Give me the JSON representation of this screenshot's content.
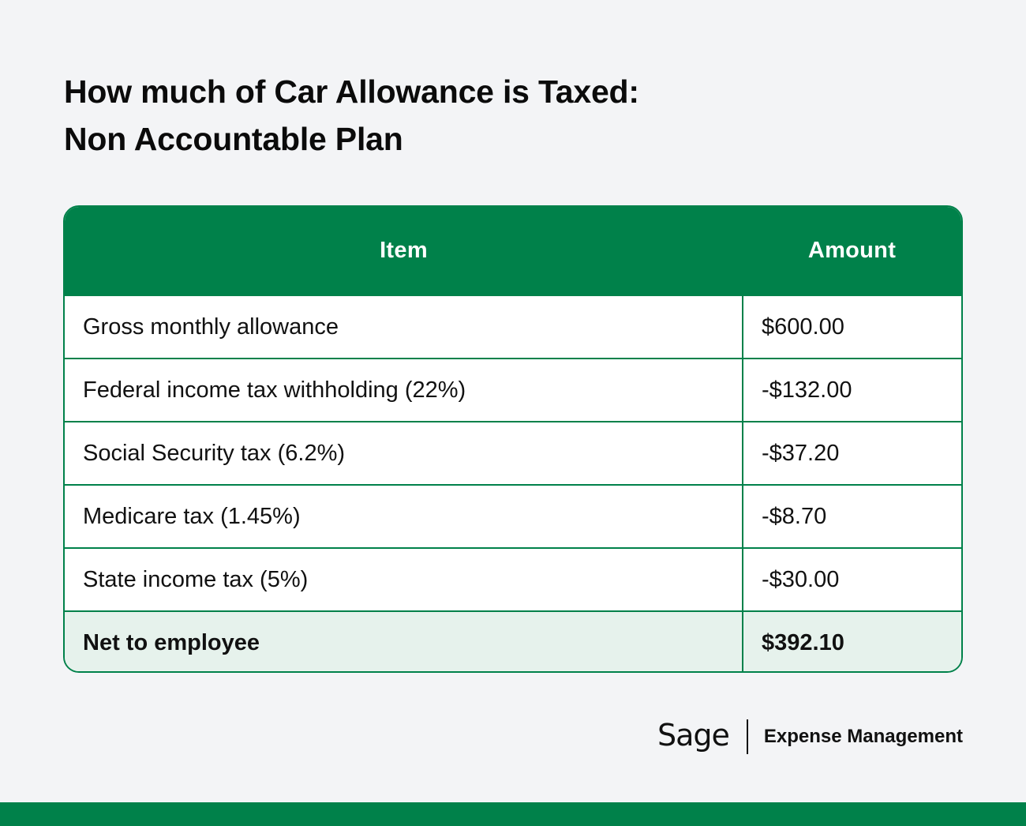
{
  "title": {
    "line1": "How much of Car Allowance is Taxed:",
    "line2": "Non Accountable Plan"
  },
  "table": {
    "headers": {
      "item": "Item",
      "amount": "Amount"
    },
    "rows": [
      {
        "item": "Gross monthly allowance",
        "amount": "$600.00"
      },
      {
        "item": "Federal income tax withholding (22%)",
        "amount": "-$132.00"
      },
      {
        "item": "Social Security tax (6.2%)",
        "amount": "-$37.20"
      },
      {
        "item": "Medicare tax (1.45%)",
        "amount": "-$8.70"
      },
      {
        "item": "State income tax (5%)",
        "amount": "-$30.00"
      }
    ],
    "total": {
      "item": "Net to employee",
      "amount": "$392.10"
    }
  },
  "footer": {
    "brand": "Sage",
    "product": "Expense Management"
  },
  "colors": {
    "accent": "#00814a",
    "total_row_bg": "#e6f2ec",
    "page_bg": "#f3f4f6"
  }
}
